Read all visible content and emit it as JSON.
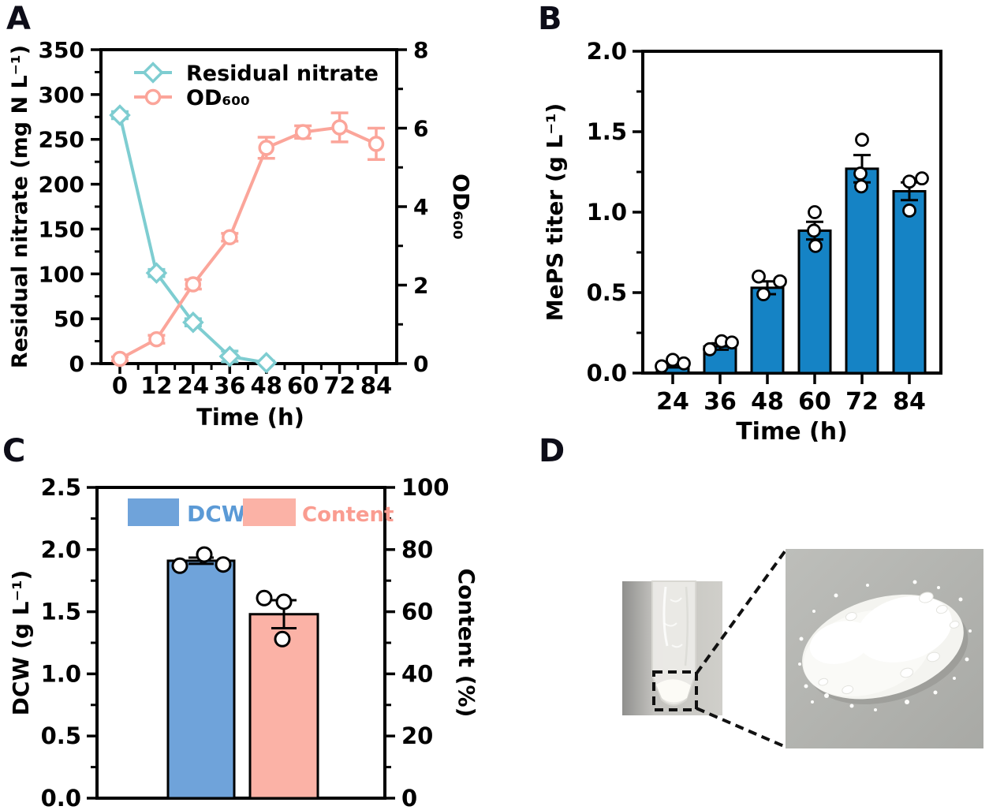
{
  "figure": {
    "background": "#ffffff",
    "panel_labels": {
      "a": "A",
      "b": "B",
      "c": "C",
      "d": "D"
    }
  },
  "colors": {
    "axis": "#000000",
    "teal": "#7ecdd1",
    "salmon": "#fba59a",
    "bar_blue": "#1583c5",
    "light_blue": "#6fa3da",
    "light_pink": "#fbb2a6",
    "dcw_text": "#5b9ad6",
    "content_text": "#fa9c90"
  },
  "chart_data": [
    {
      "id": "A",
      "type": "line",
      "xlabel": "Time (h)",
      "ylabel_left": "Residual nitrate (mg N L⁻¹)",
      "ylabel_right": "OD₆₀₀",
      "xticks": [
        0,
        12,
        24,
        36,
        48,
        60,
        72,
        84
      ],
      "ylim_left": [
        0,
        350
      ],
      "yticks_left": [
        0,
        50,
        100,
        150,
        200,
        250,
        300,
        350
      ],
      "ylim_right": [
        0,
        8
      ],
      "yticks_right": [
        0,
        2,
        4,
        6,
        8
      ],
      "grid": false,
      "legend_position": "top-left-inside",
      "series": [
        {
          "name": "Residual nitrate",
          "axis": "left",
          "marker": "diamond",
          "color": "#7ecdd1",
          "x": [
            0,
            12,
            24,
            36,
            48
          ],
          "values": [
            277,
            101,
            46,
            8,
            1
          ],
          "errors": [
            4,
            4,
            4,
            6,
            2
          ]
        },
        {
          "name": "OD₆₀₀",
          "axis": "right",
          "marker": "circle",
          "color": "#fba59a",
          "x": [
            0,
            12,
            24,
            36,
            48,
            60,
            72,
            84
          ],
          "values": [
            0.12,
            0.62,
            2.02,
            3.22,
            5.5,
            5.9,
            6.02,
            5.6
          ],
          "errors": [
            0.05,
            0.1,
            0.12,
            0.1,
            0.27,
            0.16,
            0.37,
            0.4
          ]
        }
      ]
    },
    {
      "id": "B",
      "type": "bar",
      "xlabel": "Time (h)",
      "ylabel": "MePS titer (g L⁻¹)",
      "categories": [
        "24",
        "36",
        "48",
        "60",
        "72",
        "84"
      ],
      "values": [
        0.05,
        0.165,
        0.53,
        0.885,
        1.27,
        1.13
      ],
      "errors": [
        0.015,
        0.02,
        0.04,
        0.055,
        0.085,
        0.055
      ],
      "replicates": [
        [
          0.042,
          0.082,
          0.06
        ],
        [
          0.148,
          0.198,
          0.19
        ],
        [
          0.6,
          0.49,
          0.57
        ],
        [
          1.0,
          0.885,
          0.79
        ],
        [
          1.45,
          1.24,
          1.16
        ],
        [
          1.19,
          1.01,
          1.21
        ]
      ],
      "bar_color": "#1583c5",
      "ylim": [
        0,
        2.0
      ],
      "yticks": [
        "0.0",
        "0.5",
        "1.0",
        "1.5",
        "2.0"
      ],
      "grid": false
    },
    {
      "id": "C",
      "type": "bar-dual",
      "ylabel_left": "DCW (g L⁻¹)",
      "ylabel_right": "Content (%)",
      "ylim_left": [
        0,
        2.5
      ],
      "yticks_left": [
        "0.0",
        "0.5",
        "1.0",
        "1.5",
        "2.0",
        "2.5"
      ],
      "ylim_right": [
        0,
        100
      ],
      "yticks_right": [
        "0",
        "20",
        "40",
        "60",
        "80",
        "100"
      ],
      "grid": false,
      "bars": [
        {
          "name": "DCW",
          "axis": "left",
          "color": "#6fa3da",
          "label_color": "#5b9ad6",
          "value": 1.91,
          "error": 0.025,
          "replicates": [
            1.87,
            1.96,
            1.88
          ]
        },
        {
          "name": "Content",
          "axis": "right",
          "color": "#fbb2a6",
          "label_color": "#fa9c90",
          "value": 59.2,
          "error": 4.5,
          "replicates": [
            64.4,
            63.2,
            51.2
          ]
        }
      ]
    }
  ],
  "panel_d": {
    "tube_photo_bg": "#c4c3bf",
    "powder_photo_bg": "#b3b4b0",
    "powder_color": "#fafaf7",
    "annotation_color": "#111111"
  }
}
